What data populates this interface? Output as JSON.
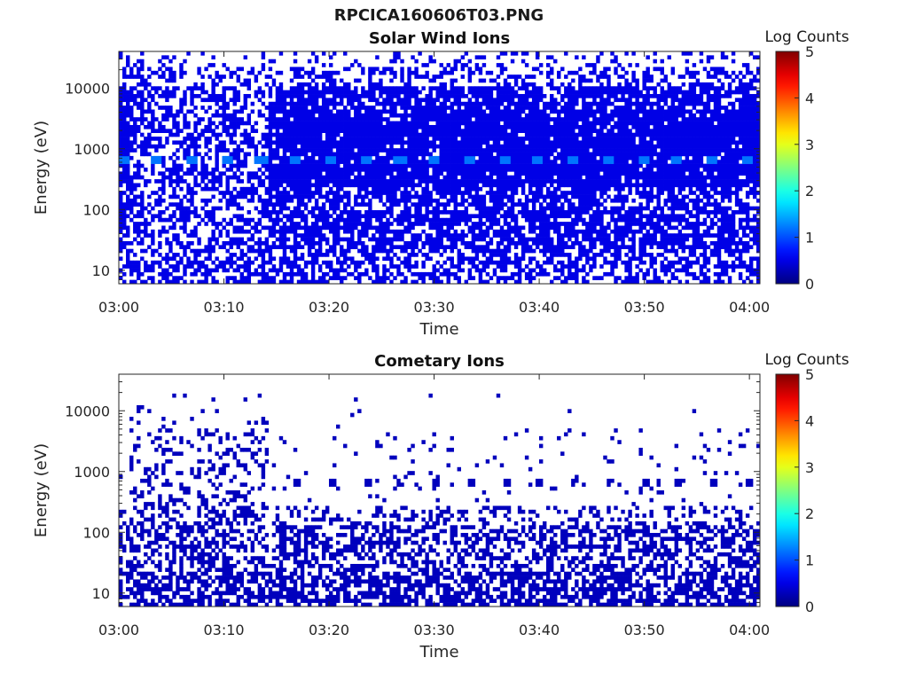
{
  "figure": {
    "title": "RPCICA160606T03.PNG"
  },
  "chart_data": [
    {
      "type": "heatmap",
      "title": "Solar Wind Ions",
      "xlabel": "Time",
      "ylabel": "Energy (eV)",
      "x_range": [
        "03:00",
        "04:01"
      ],
      "x_ticks": [
        "03:00",
        "03:10",
        "03:20",
        "03:30",
        "03:40",
        "03:50",
        "04:00"
      ],
      "y_scale": "log",
      "y_range": [
        6,
        40000
      ],
      "y_ticks": [
        10,
        100,
        1000,
        10000
      ],
      "y_tick_labels": [
        "10",
        "100",
        "1000",
        "10000"
      ],
      "colorbar": {
        "label": "Log Counts",
        "range": [
          0,
          5
        ],
        "ticks": [
          "0",
          "1",
          "2",
          "3",
          "4",
          "5"
        ],
        "colormap": "jet"
      },
      "typical_value": 0.5,
      "peak_value": 1.2,
      "peak_energy_ev": 700,
      "peak_period_min": 3.3,
      "dense_energy_band_ev": [
        800,
        4000
      ]
    },
    {
      "type": "heatmap",
      "title": "Cometary Ions",
      "xlabel": "Time",
      "ylabel": "Energy (eV)",
      "x_range": [
        "03:00",
        "04:01"
      ],
      "x_ticks": [
        "03:00",
        "03:10",
        "03:20",
        "03:30",
        "03:40",
        "03:50",
        "04:00"
      ],
      "y_scale": "log",
      "y_range": [
        6,
        40000
      ],
      "y_ticks": [
        10,
        100,
        1000,
        10000
      ],
      "y_tick_labels": [
        "10",
        "100",
        "1000",
        "10000"
      ],
      "colorbar": {
        "label": "Log Counts",
        "range": [
          0,
          5
        ],
        "ticks": [
          "0",
          "1",
          "2",
          "3",
          "4",
          "5"
        ],
        "colormap": "jet"
      },
      "typical_value": 0.3,
      "blob_energy_ev": 700,
      "blob_period_min": 3.3
    }
  ]
}
